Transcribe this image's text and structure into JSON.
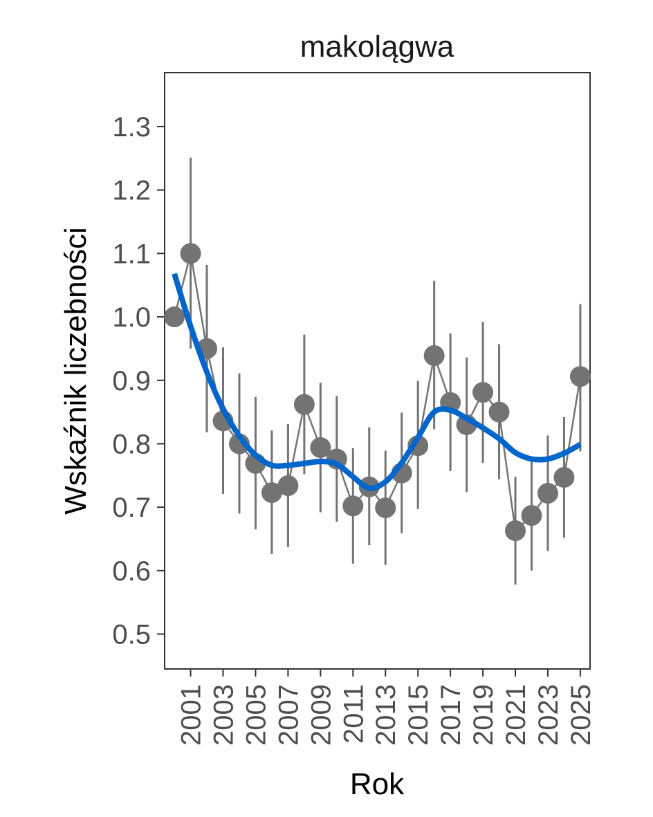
{
  "chart_data": {
    "type": "line",
    "title": "makolągwa",
    "xlabel": "Rok",
    "ylabel": "Wskaźnik liczebności",
    "xlim": [
      1999.4,
      2025.6
    ],
    "ylim": [
      0.445,
      1.385
    ],
    "x_ticks": [
      2001,
      2003,
      2005,
      2007,
      2009,
      2011,
      2013,
      2015,
      2017,
      2019,
      2021,
      2023,
      2025
    ],
    "y_ticks": [
      0.5,
      0.6,
      0.7,
      0.8,
      0.9,
      1.0,
      1.1,
      1.2,
      1.3
    ],
    "y_tick_labels": [
      "0.5",
      "0.6",
      "0.7",
      "0.8",
      "0.9",
      "1.0",
      "1.1",
      "1.2",
      "1.3"
    ],
    "grid": false,
    "colors": {
      "points": "#737373",
      "trend": "#0066cc",
      "axis": "#333333"
    },
    "series": [
      {
        "x": [
          2000,
          2001,
          2002,
          2003,
          2004,
          2005,
          2006,
          2007,
          2008,
          2009,
          2010,
          2011,
          2012,
          2013,
          2014,
          2015,
          2016,
          2017,
          2018,
          2019,
          2020,
          2021,
          2022,
          2023,
          2024,
          2025
        ],
        "y": [
          1.0,
          1.1,
          0.95,
          0.836,
          0.8,
          0.769,
          0.723,
          0.734,
          0.862,
          0.794,
          0.776,
          0.702,
          0.732,
          0.699,
          0.754,
          0.797,
          0.939,
          0.865,
          0.83,
          0.881,
          0.85,
          0.663,
          0.687,
          0.722,
          0.747,
          0.906
        ],
        "lower": [
          null,
          0.95,
          0.818,
          0.721,
          0.69,
          0.665,
          0.626,
          0.637,
          0.752,
          0.692,
          0.677,
          0.611,
          0.64,
          0.609,
          0.659,
          0.697,
          0.823,
          0.757,
          0.724,
          0.77,
          0.744,
          0.578,
          0.6,
          0.631,
          0.652,
          0.788
        ],
        "upper": [
          null,
          1.251,
          1.082,
          0.952,
          0.911,
          0.874,
          0.821,
          0.831,
          0.972,
          0.896,
          0.875,
          0.793,
          0.826,
          0.789,
          0.849,
          0.899,
          1.057,
          0.974,
          0.936,
          0.992,
          0.957,
          0.748,
          0.775,
          0.813,
          0.842,
          1.02
        ]
      },
      {
        "x": [
          2000,
          2001,
          2002,
          2003,
          2004,
          2005,
          2006,
          2007,
          2008,
          2009,
          2010,
          2011,
          2012,
          2013,
          2014,
          2015,
          2016,
          2017,
          2018,
          2019,
          2020,
          2021,
          2022,
          2023,
          2024,
          2025
        ],
        "y": [
          1.068,
          0.985,
          0.913,
          0.855,
          0.812,
          0.782,
          0.766,
          0.766,
          0.769,
          0.772,
          0.768,
          0.748,
          0.73,
          0.74,
          0.77,
          0.81,
          0.85,
          0.853,
          0.84,
          0.825,
          0.808,
          0.786,
          0.776,
          0.776,
          0.785,
          0.799
        ]
      }
    ]
  }
}
